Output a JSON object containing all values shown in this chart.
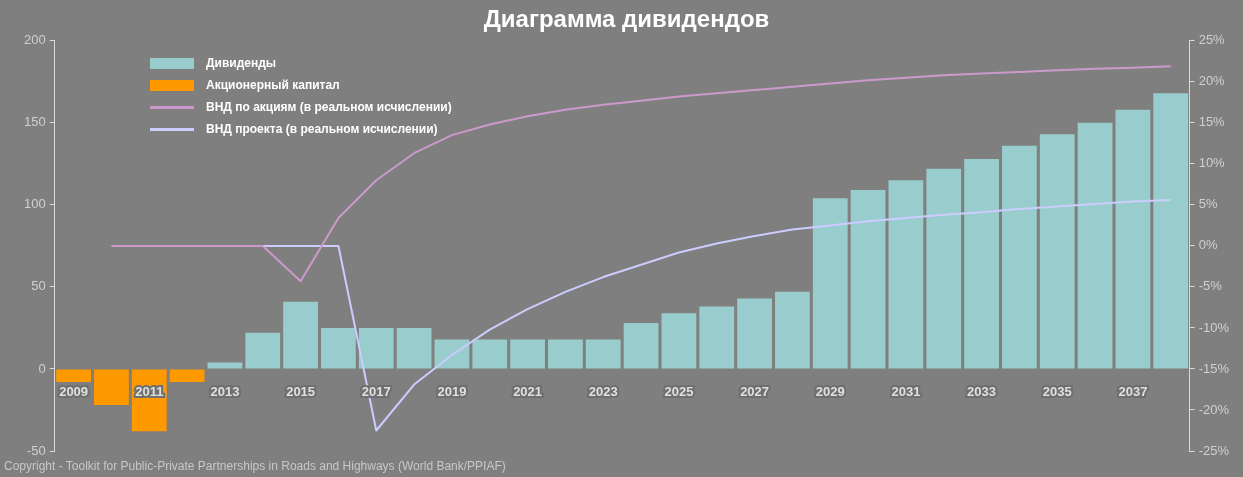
{
  "chart_data": {
    "type": "bar",
    "title": "Диаграмма дивидендов",
    "categories": [
      "2009",
      null,
      "2011",
      null,
      "2013",
      null,
      "2015",
      null,
      "2017",
      null,
      "2019",
      null,
      "2021",
      null,
      "2023",
      null,
      "2025",
      null,
      "2027",
      null,
      "2029",
      null,
      "2031",
      null,
      "2033",
      null,
      "2035",
      null,
      "2037",
      null
    ],
    "series": [
      {
        "name": "Дивиденды",
        "color": "#99cccc",
        "values": [
          null,
          null,
          null,
          null,
          4,
          22,
          41,
          25,
          25,
          25,
          18,
          18,
          18,
          18,
          18,
          28,
          34,
          38,
          43,
          47,
          104,
          109,
          115,
          122,
          128,
          136,
          143,
          150,
          158,
          168
        ]
      },
      {
        "name": "Акционерный капитал",
        "color": "#ff9900",
        "values": [
          -8,
          -22,
          -38,
          -8,
          null,
          null,
          null,
          null,
          null,
          null,
          null,
          null,
          null,
          null,
          null,
          null,
          null,
          null,
          null,
          null,
          null,
          null,
          null,
          null,
          null,
          null,
          null,
          null,
          null,
          null
        ]
      },
      {
        "name": "ВНД по акциям (в реальном исчислении)",
        "type": "line",
        "axis": "y2",
        "color": "#cc99cc",
        "values": [
          null,
          0,
          0,
          0,
          0,
          0,
          -4.3,
          3.4,
          8,
          11.3,
          13.5,
          14.8,
          15.8,
          16.6,
          17.2,
          17.7,
          18.2,
          18.6,
          19,
          19.4,
          19.8,
          20.2,
          20.5,
          20.8,
          21,
          21.2,
          21.4,
          21.6,
          21.7,
          21.9
        ]
      },
      {
        "name": "ВНД проекта (в реальном исчислении)",
        "type": "line",
        "axis": "y2",
        "color": "#ccccff",
        "values": [
          null,
          null,
          null,
          null,
          null,
          0,
          0,
          0,
          -22.5,
          -16.9,
          -13.3,
          -10.2,
          -7.7,
          -5.6,
          -3.8,
          -2.3,
          -0.8,
          0.3,
          1.2,
          2,
          2.5,
          3,
          3.4,
          3.8,
          4.1,
          4.5,
          4.8,
          5.1,
          5.4,
          5.6
        ]
      }
    ],
    "stacked": true,
    "ylim": [
      -50,
      200
    ],
    "yticks": [
      -50,
      0,
      50,
      100,
      150,
      200
    ],
    "y2lim": [
      -25,
      25
    ],
    "y2ticks": [
      {
        "value": -25,
        "label": "-25%"
      },
      {
        "value": -20,
        "label": "-20%"
      },
      {
        "value": -15,
        "label": "-15%"
      },
      {
        "value": -10,
        "label": "-10%"
      },
      {
        "value": -5,
        "label": "-5%"
      },
      {
        "value": 0,
        "label": "0%"
      },
      {
        "value": 5,
        "label": "5%"
      },
      {
        "value": 10,
        "label": "10%"
      },
      {
        "value": 15,
        "label": "15%"
      },
      {
        "value": 20,
        "label": "20%"
      },
      {
        "value": 25,
        "label": "25%"
      }
    ],
    "grid": false,
    "legend": "top left",
    "marker": "none",
    "line_style": "solid",
    "annotations": [
      "Copyright - Toolkit for Public-Private Partnerships in Roads and Highways (World Bank/PPIAF)"
    ]
  }
}
